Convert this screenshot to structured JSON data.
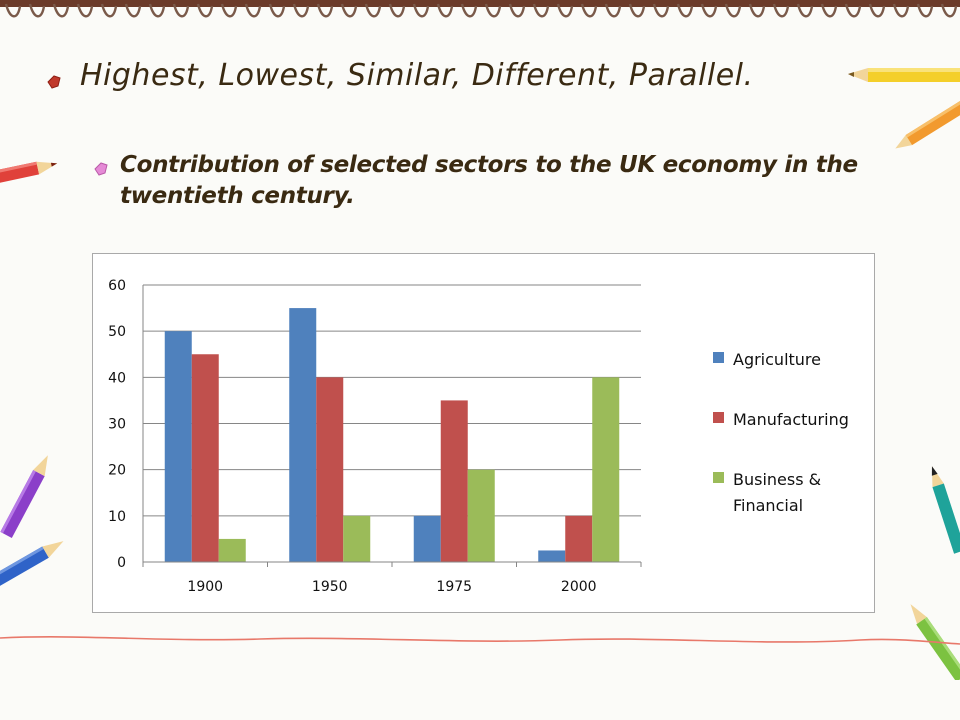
{
  "slide": {
    "title": "Highest, Lowest,  Similar, Different, Parallel.",
    "subtitle": "Contribution of selected sectors to the UK economy in the twentieth century."
  },
  "colors": {
    "agriculture": "#4f81bd",
    "manufacturing": "#c0504d",
    "business_financial": "#9bbb59",
    "title_text": "#3a2a12",
    "title_bullet": "#c0392b",
    "subtitle_bullet": "#e58ad6"
  },
  "chart_data": {
    "type": "bar",
    "categories": [
      "1900",
      "1950",
      "1975",
      "2000"
    ],
    "series": [
      {
        "name": "Agriculture",
        "values": [
          50,
          55,
          10,
          2.5
        ]
      },
      {
        "name": "Manufacturing",
        "values": [
          45,
          40,
          35,
          10
        ]
      },
      {
        "name": "Business & Financial",
        "values": [
          5,
          10,
          20,
          40
        ]
      }
    ],
    "yticks": [
      "0",
      "10",
      "20",
      "30",
      "40",
      "50",
      "60"
    ],
    "ylim": [
      0,
      60
    ],
    "grid": true,
    "legend_position": "right"
  }
}
